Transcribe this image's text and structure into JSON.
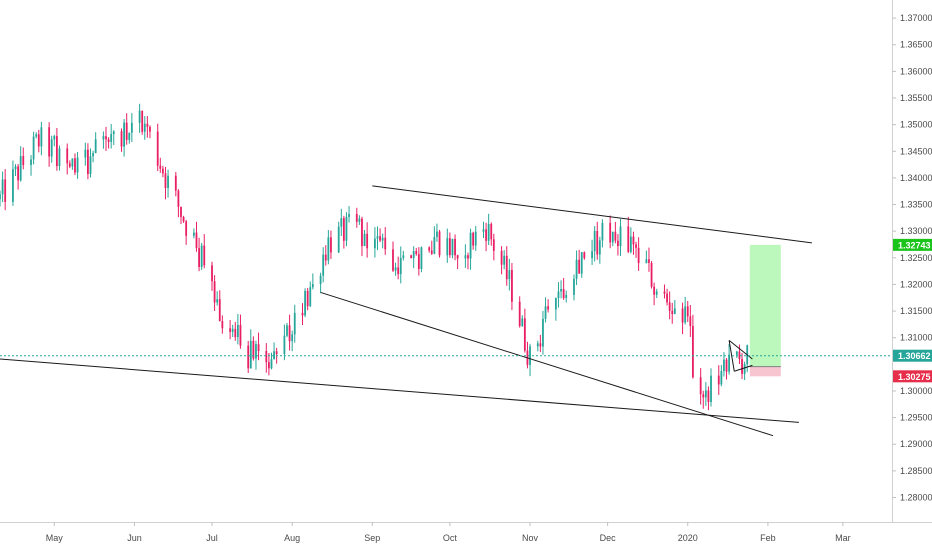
{
  "chart_data": {
    "type": "candlestick",
    "x_axis": {
      "labels": [
        "May",
        "Jun",
        "Jul",
        "Aug",
        "Sep",
        "Oct",
        "Nov",
        "Dec",
        "2020",
        "Feb",
        "Mar"
      ],
      "label_dates": [
        "2019-05-01",
        "2019-06-01",
        "2019-07-01",
        "2019-08-01",
        "2019-09-01",
        "2019-10-01",
        "2019-11-01",
        "2019-12-01",
        "2020-01-01",
        "2020-02-01",
        "2020-03-01"
      ],
      "range": [
        "2019-04-10",
        "2020-03-20"
      ]
    },
    "y_axis": {
      "ticks": [
        1.28,
        1.285,
        1.29,
        1.295,
        1.3,
        1.305,
        1.31,
        1.315,
        1.32,
        1.325,
        1.33,
        1.335,
        1.34,
        1.345,
        1.35,
        1.355,
        1.36,
        1.365,
        1.37
      ],
      "tick_labels": [
        "1.28000",
        "1.28500",
        "1.29000",
        "1.29500",
        "1.30000",
        "1.30500",
        "1.31000",
        "1.31500",
        "1.32000",
        "1.32500",
        "1.33000",
        "1.33500",
        "1.34000",
        "1.34500",
        "1.35000",
        "1.35500",
        "1.36000",
        "1.36500",
        "1.37000"
      ],
      "range": [
        1.2754,
        1.3734
      ]
    },
    "series_anchor_path": [
      [
        "2019-04-10",
        1.336
      ],
      [
        "2019-04-25",
        1.347
      ],
      [
        "2019-05-10",
        1.342
      ],
      [
        "2019-05-25",
        1.348
      ],
      [
        "2019-06-05",
        1.35
      ],
      [
        "2019-06-15",
        1.338
      ],
      [
        "2019-06-25",
        1.327
      ],
      [
        "2019-07-05",
        1.314
      ],
      [
        "2019-07-15",
        1.307
      ],
      [
        "2019-07-25",
        1.305
      ],
      [
        "2019-08-05",
        1.316
      ],
      [
        "2019-08-15",
        1.328
      ],
      [
        "2019-08-25",
        1.331
      ],
      [
        "2019-09-05",
        1.327
      ],
      [
        "2019-09-15",
        1.323
      ],
      [
        "2019-09-25",
        1.329
      ],
      [
        "2019-10-05",
        1.326
      ],
      [
        "2019-10-15",
        1.331
      ],
      [
        "2019-10-25",
        1.319
      ],
      [
        "2019-11-01",
        1.306
      ],
      [
        "2019-11-10",
        1.317
      ],
      [
        "2019-11-20",
        1.325
      ],
      [
        "2019-12-01",
        1.33
      ],
      [
        "2019-12-10",
        1.328
      ],
      [
        "2019-12-20",
        1.319
      ],
      [
        "2020-01-01",
        1.313
      ],
      [
        "2020-01-05",
        1.298
      ],
      [
        "2020-01-12",
        1.301
      ],
      [
        "2020-01-18",
        1.305
      ],
      [
        "2020-01-25",
        1.3062
      ]
    ],
    "current_price": 1.30662,
    "current_price_label": "1.30662",
    "position_tool": {
      "target": 1.32743,
      "target_label": "1.32743",
      "entry": 1.30456,
      "entry_label": "1.30456",
      "stop": 1.30275,
      "stop_label": "1.30275",
      "start_date": "2020-01-25",
      "end_date": "2020-02-06"
    },
    "trendlines": [
      {
        "name": "upper-channel",
        "from": [
          "2019-09-01",
          1.3385
        ],
        "to": [
          "2020-02-18",
          1.3278
        ]
      },
      {
        "name": "lower-channel",
        "from": [
          "2019-08-12",
          1.3185
        ],
        "to": [
          "2020-02-03",
          1.2916
        ]
      },
      {
        "name": "long-support",
        "from": [
          "2019-04-10",
          1.306
        ],
        "to": [
          "2020-02-13",
          1.2941
        ]
      },
      {
        "name": "pennant-upper",
        "from": [
          "2020-01-17",
          1.3095
        ],
        "to": [
          "2020-01-26",
          1.306
        ]
      },
      {
        "name": "pennant-lower",
        "from": [
          "2020-01-19",
          1.3037
        ],
        "to": [
          "2020-01-26",
          1.3048
        ]
      },
      {
        "name": "pennant-side",
        "from": [
          "2020-01-17",
          1.3095
        ],
        "to": [
          "2020-01-19",
          1.3037
        ]
      }
    ],
    "colors": {
      "up": "#26a69a",
      "down": "#e91e63",
      "current_price": "#26a69a",
      "target_zone": "#a6f5a6",
      "target_badge": "#1ac41a",
      "stop_zone": "#f5b7c4",
      "stop_badge": "#e62e4a",
      "trendline": "#1a1a1a",
      "axis_text": "#4a4a4a"
    },
    "grid": false,
    "legend": "none"
  }
}
